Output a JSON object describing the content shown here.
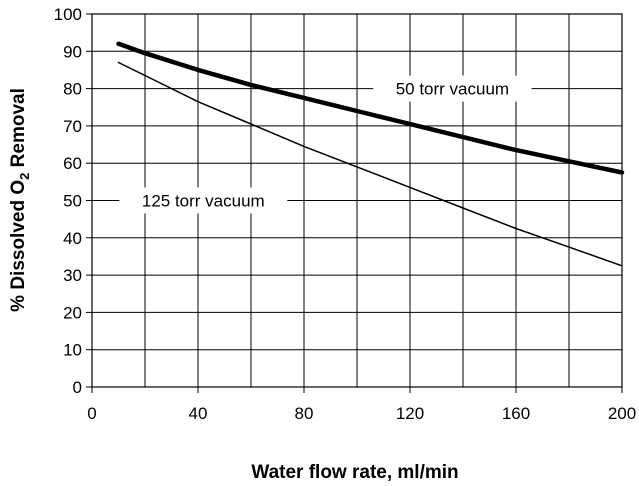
{
  "chart_data": {
    "type": "line",
    "title": "",
    "xlabel": "Water flow rate, ml/min",
    "ylabel": {
      "prefix": "% Dissolved O",
      "subscript": "2",
      "suffix": " Removal"
    },
    "xlim": [
      0,
      200
    ],
    "ylim": [
      0,
      100
    ],
    "xticks": [
      0,
      40,
      80,
      120,
      160,
      200
    ],
    "yticks": [
      0,
      10,
      20,
      30,
      40,
      50,
      60,
      70,
      80,
      90,
      100
    ],
    "grid": true,
    "series": [
      {
        "name": "50 torr vacuum",
        "line_weight": "heavy",
        "color": "#000000",
        "x": [
          10,
          20,
          40,
          60,
          80,
          100,
          120,
          140,
          160,
          180,
          200
        ],
        "y": [
          92,
          89.5,
          85,
          81,
          77.5,
          74,
          70.5,
          67,
          63.5,
          60.5,
          57.5
        ]
      },
      {
        "name": "125 torr vacuum",
        "line_weight": "light",
        "color": "#000000",
        "x": [
          10,
          20,
          40,
          60,
          80,
          100,
          120,
          140,
          160,
          180,
          200
        ],
        "y": [
          87,
          83.5,
          76.5,
          70.5,
          64.5,
          59,
          53.5,
          48,
          42.5,
          37.5,
          32.5
        ]
      }
    ],
    "annotations": [
      {
        "text": "50 torr vacuum",
        "series": 0,
        "x": 136,
        "y": 80
      },
      {
        "text": "125 torr vacuum",
        "series": 1,
        "x": 42,
        "y": 50
      }
    ]
  }
}
